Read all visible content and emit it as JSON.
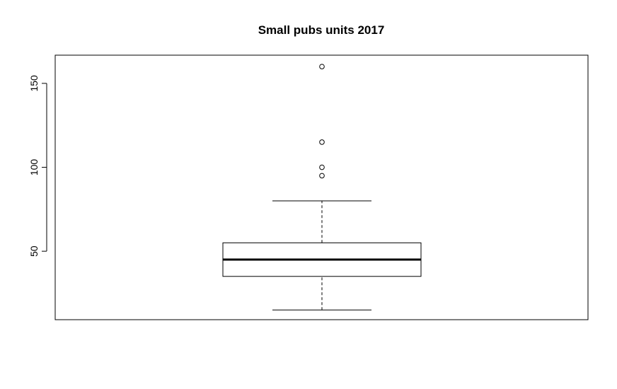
{
  "chart_data": {
    "type": "boxplot",
    "title": "Small pubs units 2017",
    "xlabel": "",
    "ylabel": "",
    "ylim": [
      9.2,
      166.8
    ],
    "yticks": [
      50,
      100,
      150
    ],
    "grid": false,
    "legend": "none",
    "box": {
      "whisker_low": 15,
      "q1": 35,
      "median": 45,
      "q3": 55,
      "whisker_high": 80
    },
    "outliers": [
      95,
      100,
      115,
      160
    ]
  }
}
